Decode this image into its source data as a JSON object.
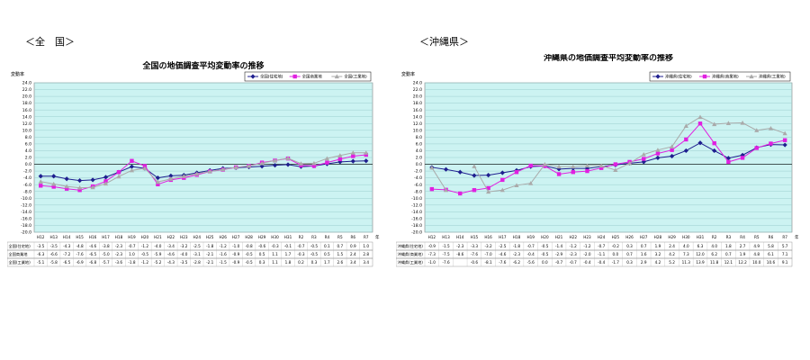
{
  "sections": {
    "left_label": "＜全　国＞",
    "right_label": "＜沖縄県＞"
  },
  "years": [
    "H12",
    "H13",
    "H14",
    "H15",
    "H16",
    "H17",
    "H18",
    "H19",
    "H20",
    "H21",
    "H22",
    "H23",
    "H24",
    "H25",
    "H26",
    "H27",
    "H28",
    "H29",
    "H30",
    "H31",
    "R2",
    "R3",
    "R4",
    "R5",
    "R6",
    "R7"
  ],
  "chart_data": [
    {
      "type": "line",
      "title": "全国の地価調査平均変動率の推移",
      "ylabel": "変動率",
      "xlabel": "",
      "x_unit_label": "年",
      "ylim": [
        -20,
        24
      ],
      "yticks": [
        -20,
        -18,
        -16,
        -14,
        -12,
        -10,
        -8,
        -6,
        -4,
        -2,
        0,
        2,
        4,
        6,
        8,
        10,
        12,
        14,
        16,
        18,
        20,
        22,
        24
      ],
      "grid": true,
      "legend": "top-right",
      "series": [
        {
          "name": "全国(住宅地)",
          "color": "#1f1f8f",
          "marker": "diamond",
          "values": [
            -3.5,
            -3.5,
            -4.3,
            -4.8,
            -4.6,
            -3.8,
            -2.3,
            -0.7,
            -1.2,
            -4.0,
            -3.4,
            -3.2,
            -2.5,
            -1.8,
            -1.2,
            -1.0,
            -0.8,
            -0.6,
            -0.3,
            -0.1,
            -0.7,
            -0.5,
            0.1,
            0.7,
            0.9,
            1.0
          ]
        },
        {
          "name": "全国商業地",
          "color": "#e020e0",
          "marker": "square",
          "values": [
            -6.3,
            -6.6,
            -7.2,
            -7.6,
            -6.5,
            -5.0,
            -2.3,
            1.0,
            -0.5,
            -5.9,
            -4.6,
            -4.0,
            -3.1,
            -2.1,
            -1.6,
            -0.9,
            -0.5,
            0.5,
            1.1,
            1.7,
            -0.3,
            -0.5,
            0.5,
            1.5,
            2.4,
            2.8
          ]
        },
        {
          "name": "全国(工業地)",
          "color": "#aaaaaa",
          "marker": "triangle",
          "values": [
            -5.1,
            -5.8,
            -6.5,
            -6.9,
            -6.8,
            -5.7,
            -3.6,
            -1.8,
            -1.2,
            -5.2,
            -4.3,
            -3.5,
            -2.8,
            -2.1,
            -1.5,
            -0.9,
            -0.5,
            0.3,
            1.1,
            1.8,
            0.2,
            0.3,
            1.7,
            2.6,
            3.4,
            3.4
          ]
        }
      ],
      "table_rows": [
        {
          "label": "全国(住宅地)",
          "values": [
            "-3.5",
            "-3.5",
            "-4.3",
            "-4.8",
            "-4.6",
            "-3.8",
            "-2.3",
            "-0.7",
            "-1.2",
            "-4.0",
            "-3.4",
            "-3.2",
            "-2.5",
            "-1.8",
            "-1.2",
            "-1.0",
            "-0.8",
            "-0.6",
            "-0.3",
            "-0.1",
            "-0.7",
            "-0.5",
            "0.1",
            "0.7",
            "0.9",
            "1.0"
          ]
        },
        {
          "label": "全国商業地",
          "values": [
            "-6.3",
            "-6.6",
            "-7.2",
            "-7.6",
            "-6.5",
            "-5.0",
            "-2.3",
            "1.0",
            "-0.5",
            "-5.9",
            "-4.6",
            "-4.0",
            "-3.1",
            "-2.1",
            "-1.6",
            "-0.9",
            "-0.5",
            "0.5",
            "1.1",
            "1.7",
            "-0.3",
            "-0.5",
            "0.5",
            "1.5",
            "2.4",
            "2.8"
          ]
        },
        {
          "label": "全国(工業地)",
          "values": [
            "-5.1",
            "-5.8",
            "-6.5",
            "-6.9",
            "-6.8",
            "-5.7",
            "-3.6",
            "-1.8",
            "-1.2",
            "-5.2",
            "-4.3",
            "-3.5",
            "-2.8",
            "-2.1",
            "-1.5",
            "-0.9",
            "-0.5",
            "0.3",
            "1.1",
            "1.8",
            "0.2",
            "0.3",
            "1.7",
            "2.6",
            "3.4",
            "3.4"
          ]
        }
      ]
    },
    {
      "type": "line",
      "title": "沖縄県の地価調査平均変動率の推移",
      "ylabel": "変動率",
      "xlabel": "",
      "x_unit_label": "年",
      "ylim": [
        -20,
        24
      ],
      "yticks": [
        -20,
        -18,
        -16,
        -14,
        -12,
        -10,
        -8,
        -6,
        -4,
        -2,
        0,
        2,
        4,
        6,
        8,
        10,
        12,
        14,
        16,
        18,
        20,
        22,
        24
      ],
      "grid": true,
      "legend": "top-right",
      "series": [
        {
          "name": "沖縄県(住宅地)",
          "color": "#1f1f8f",
          "marker": "diamond",
          "values": [
            -0.9,
            -1.5,
            -2.3,
            -3.3,
            -3.2,
            -2.5,
            -1.8,
            -0.7,
            -0.5,
            -1.4,
            -1.2,
            -1.2,
            -0.7,
            -0.2,
            0.3,
            0.7,
            1.9,
            2.4,
            4.0,
            6.3,
            4.0,
            1.8,
            2.7,
            4.9,
            5.8,
            5.7
          ]
        },
        {
          "name": "沖縄県(商業地)",
          "color": "#e020e0",
          "marker": "square",
          "values": [
            -7.3,
            -7.5,
            -8.6,
            -7.6,
            -7.0,
            -4.6,
            -2.3,
            -0.4,
            -0.5,
            -2.9,
            -2.3,
            -2.0,
            -1.1,
            0.0,
            0.7,
            1.6,
            3.2,
            4.2,
            7.3,
            12.0,
            6.2,
            0.7,
            1.9,
            4.8,
            6.1,
            7.1
          ]
        },
        {
          "name": "沖縄県(工業地)",
          "color": "#aaaaaa",
          "marker": "triangle",
          "values": [
            -1.0,
            -7.6,
            null,
            -0.6,
            -8.1,
            -7.6,
            -6.2,
            -5.6,
            0.0,
            -0.7,
            -0.7,
            -0.4,
            -0.4,
            -1.7,
            0.3,
            2.9,
            4.2,
            5.2,
            11.3,
            13.9,
            11.8,
            12.1,
            12.2,
            10.0,
            10.6,
            9.1
          ]
        }
      ],
      "table_rows": [
        {
          "label": "沖縄県(住宅地)",
          "values": [
            "-0.9",
            "-1.5",
            "-2.3",
            "-3.3",
            "-3.2",
            "-2.5",
            "-1.8",
            "-0.7",
            "-0.5",
            "-1.4",
            "-1.2",
            "-1.2",
            "-0.7",
            "-0.2",
            "0.3",
            "0.7",
            "1.9",
            "2.4",
            "4.0",
            "6.3",
            "4.0",
            "1.8",
            "2.7",
            "4.9",
            "5.8",
            "5.7"
          ]
        },
        {
          "label": "沖縄県(商業地)",
          "values": [
            "-7.3",
            "-7.5",
            "-8.6",
            "-7.6",
            "-7.0",
            "-4.6",
            "-2.3",
            "-0.4",
            "-0.5",
            "-2.9",
            "-2.3",
            "-2.0",
            "-1.1",
            "0.0",
            "0.7",
            "1.6",
            "3.2",
            "4.2",
            "7.3",
            "12.0",
            "6.2",
            "0.7",
            "1.9",
            "4.8",
            "6.1",
            "7.1"
          ]
        },
        {
          "label": "沖縄県(工業地)",
          "values": [
            "-1.0",
            "-7.6",
            "",
            "-0.6",
            "-8.1",
            "-7.6",
            "-6.2",
            "-5.6",
            "0.0",
            "-0.7",
            "-0.7",
            "-0.4",
            "-0.4",
            "-1.7",
            "0.3",
            "2.9",
            "4.2",
            "5.2",
            "11.3",
            "13.9",
            "11.8",
            "12.1",
            "12.2",
            "10.0",
            "10.6",
            "9.1"
          ]
        }
      ]
    }
  ]
}
